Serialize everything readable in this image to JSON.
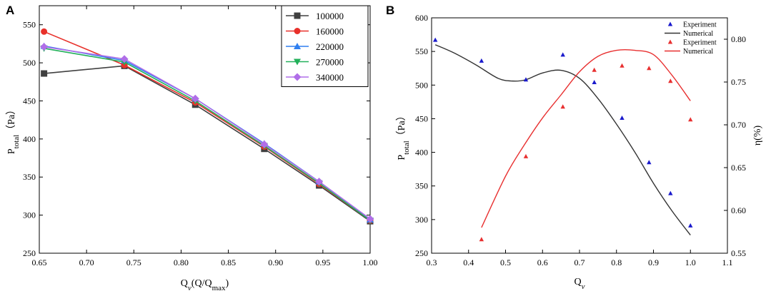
{
  "chart_data": [
    {
      "panel": "A",
      "type": "line",
      "xlabel_main": "Q",
      "xlabel_sub": "v",
      "xlabel_rest": "(Q/Q",
      "xlabel_sub2": "max",
      "xlabel_end": ")",
      "ylabel_main": "P",
      "ylabel_sub": "total",
      "ylabel_rest": "（Pa）",
      "xlim": [
        0.65,
        1.0
      ],
      "ylim": [
        250,
        575
      ],
      "xticks": [
        "0.65",
        "0.70",
        "0.75",
        "0.80",
        "0.85",
        "0.90",
        "0.95",
        "1.00"
      ],
      "yticks": [
        "250",
        "300",
        "350",
        "400",
        "450",
        "500",
        "550"
      ],
      "x": [
        0.655,
        0.74,
        0.815,
        0.888,
        0.946,
        1.0
      ],
      "series": [
        {
          "name": "100000",
          "color": "#404040",
          "marker": "square",
          "values": [
            486,
            496,
            445,
            387,
            339,
            292
          ]
        },
        {
          "name": "160000",
          "color": "#e8302a",
          "marker": "circle",
          "values": [
            541,
            497,
            448,
            390,
            341,
            293
          ]
        },
        {
          "name": "220000",
          "color": "#2f7ff0",
          "marker": "triangle",
          "values": [
            522,
            503,
            453,
            394,
            344,
            294
          ]
        },
        {
          "name": "270000",
          "color": "#22b05a",
          "marker": "tri-down",
          "values": [
            519,
            501,
            450,
            391,
            342,
            293
          ]
        },
        {
          "name": "340000",
          "color": "#b06ee8",
          "marker": "diamond",
          "values": [
            521,
            505,
            453,
            393,
            344,
            295
          ]
        }
      ]
    },
    {
      "panel": "B",
      "type": "scatter+line",
      "xlabel_main": "Q",
      "xlabel_sub": "v",
      "ylabel_main": "P",
      "ylabel_sub": "total",
      "ylabel_rest": "（Pa）",
      "y2label": "η(%)",
      "xlim": [
        0.3,
        1.1
      ],
      "ylim": [
        250,
        600
      ],
      "y2lim": [
        0.55,
        0.825
      ],
      "xticks": [
        "0.3",
        "0.4",
        "0.5",
        "0.6",
        "0.7",
        "0.8",
        "0.9",
        "1.0",
        "1.1"
      ],
      "yticks": [
        "250",
        "300",
        "350",
        "400",
        "450",
        "500",
        "550",
        "600"
      ],
      "y2ticks": [
        "0.55",
        "0.60",
        "0.65",
        "0.70",
        "0.75",
        "0.80"
      ],
      "legend": [
        {
          "label": "Experiment",
          "kind": "marker",
          "color": "#1a1acc"
        },
        {
          "label": "Numerical",
          "kind": "line",
          "color": "#333333"
        },
        {
          "label": "Experiment",
          "kind": "marker",
          "color": "#e83030"
        },
        {
          "label": "Numerical",
          "kind": "line",
          "color": "#e83030"
        }
      ],
      "pressure_experiment": {
        "color": "#1a1acc",
        "x": [
          0.31,
          0.435,
          0.555,
          0.655,
          0.74,
          0.815,
          0.888,
          0.946,
          1.0
        ],
        "y": [
          567,
          536,
          508,
          545,
          504,
          451,
          385,
          339,
          291
        ]
      },
      "pressure_numerical": {
        "color": "#333333",
        "x": [
          0.31,
          0.36,
          0.42,
          0.48,
          0.52,
          0.555,
          0.6,
          0.65,
          0.7,
          0.75,
          0.8,
          0.85,
          0.9,
          0.95,
          1.0
        ],
        "y": [
          560,
          548,
          530,
          510,
          506,
          508,
          518,
          522,
          510,
          480,
          442,
          400,
          354,
          313,
          277
        ]
      },
      "efficiency_experiment": {
        "color": "#e83030",
        "x": [
          0.435,
          0.555,
          0.655,
          0.74,
          0.815,
          0.888,
          0.946,
          1.0
        ],
        "y": [
          0.566,
          0.663,
          0.721,
          0.764,
          0.769,
          0.766,
          0.751,
          0.706
        ]
      },
      "efficiency_numerical": {
        "color": "#e83030",
        "x": [
          0.435,
          0.5,
          0.55,
          0.6,
          0.65,
          0.7,
          0.75,
          0.8,
          0.85,
          0.9,
          0.95,
          1.0
        ],
        "y": [
          0.58,
          0.64,
          0.676,
          0.708,
          0.735,
          0.762,
          0.78,
          0.787,
          0.787,
          0.782,
          0.758,
          0.728
        ]
      }
    }
  ]
}
